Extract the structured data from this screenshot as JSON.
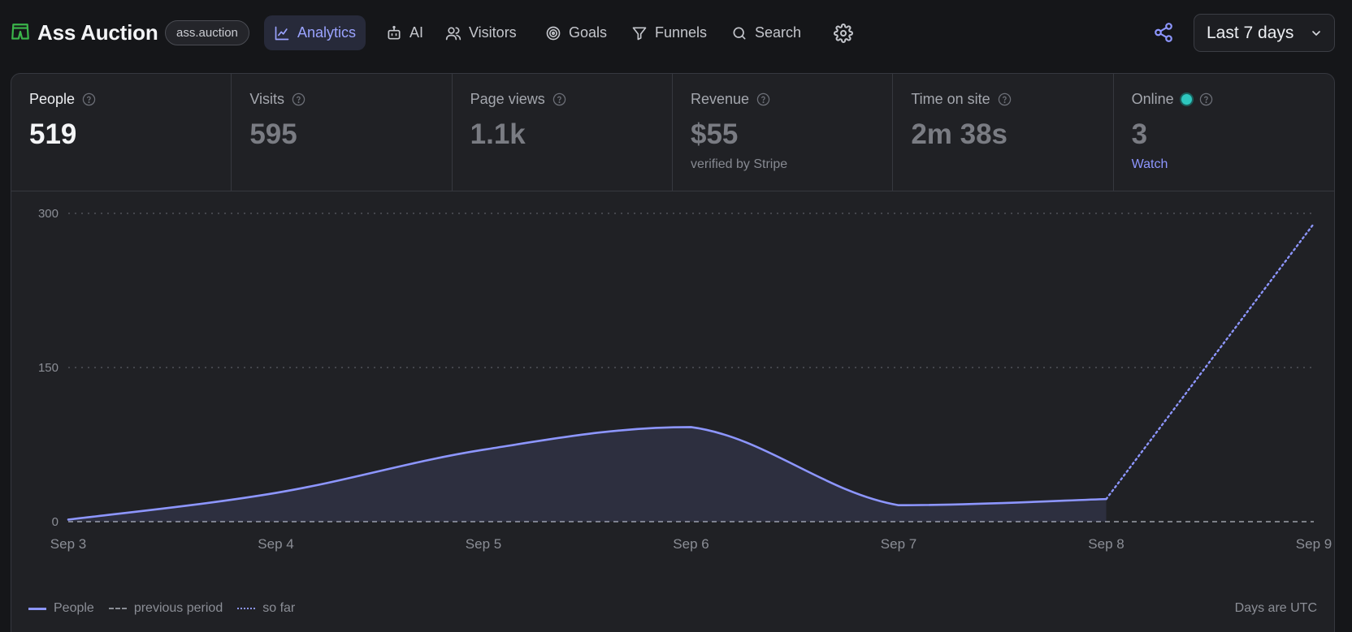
{
  "site": {
    "name": "Ass Auction",
    "domain": "ass.auction",
    "logo_icon": "shorts-icon",
    "brand_color": "#3bb54a"
  },
  "nav": [
    {
      "label": "Analytics",
      "icon": "chart-icon",
      "active": true
    },
    {
      "label": "AI",
      "icon": "robot-icon",
      "active": false
    },
    {
      "label": "Visitors",
      "icon": "users-icon",
      "active": false
    },
    {
      "label": "Goals",
      "icon": "target-icon",
      "active": false
    },
    {
      "label": "Funnels",
      "icon": "funnel-icon",
      "active": false
    },
    {
      "label": "Search",
      "icon": "search-icon",
      "active": false
    }
  ],
  "date_range": {
    "selected": "Last 7 days"
  },
  "stats": [
    {
      "label": "People",
      "value": "519"
    },
    {
      "label": "Visits",
      "value": "595"
    },
    {
      "label": "Page views",
      "value": "1.1k"
    },
    {
      "label": "Revenue",
      "value": "$55",
      "sub": "verified by Stripe"
    },
    {
      "label": "Time on site",
      "value": "2m 38s"
    },
    {
      "label": "Online",
      "value": "3",
      "link": "Watch"
    }
  ],
  "colors": {
    "accent": "#8d96ff",
    "online": "#2ec7bf",
    "grid": "#5a5c63"
  },
  "chart_data": {
    "type": "area",
    "x": [
      "Sep 3",
      "Sep 4",
      "Sep 5",
      "Sep 6",
      "Sep 7",
      "Sep 8",
      "Sep 9"
    ],
    "y_ticks": [
      0,
      150,
      300
    ],
    "ylim": [
      0,
      300
    ],
    "grid": true,
    "series": [
      {
        "name": "People",
        "values": [
          2,
          28,
          70,
          92,
          16,
          22,
          null
        ],
        "style": "solid"
      },
      {
        "name": "previous period",
        "values": [
          0,
          0,
          0,
          0,
          0,
          0,
          0
        ],
        "style": "dashed"
      },
      {
        "name": "so far",
        "values": [
          null,
          null,
          null,
          null,
          null,
          22,
          290
        ],
        "style": "dotted"
      }
    ],
    "legend": [
      "People",
      "previous period",
      "so far"
    ],
    "legend_position": "bottom-left",
    "note": "Days are UTC"
  }
}
